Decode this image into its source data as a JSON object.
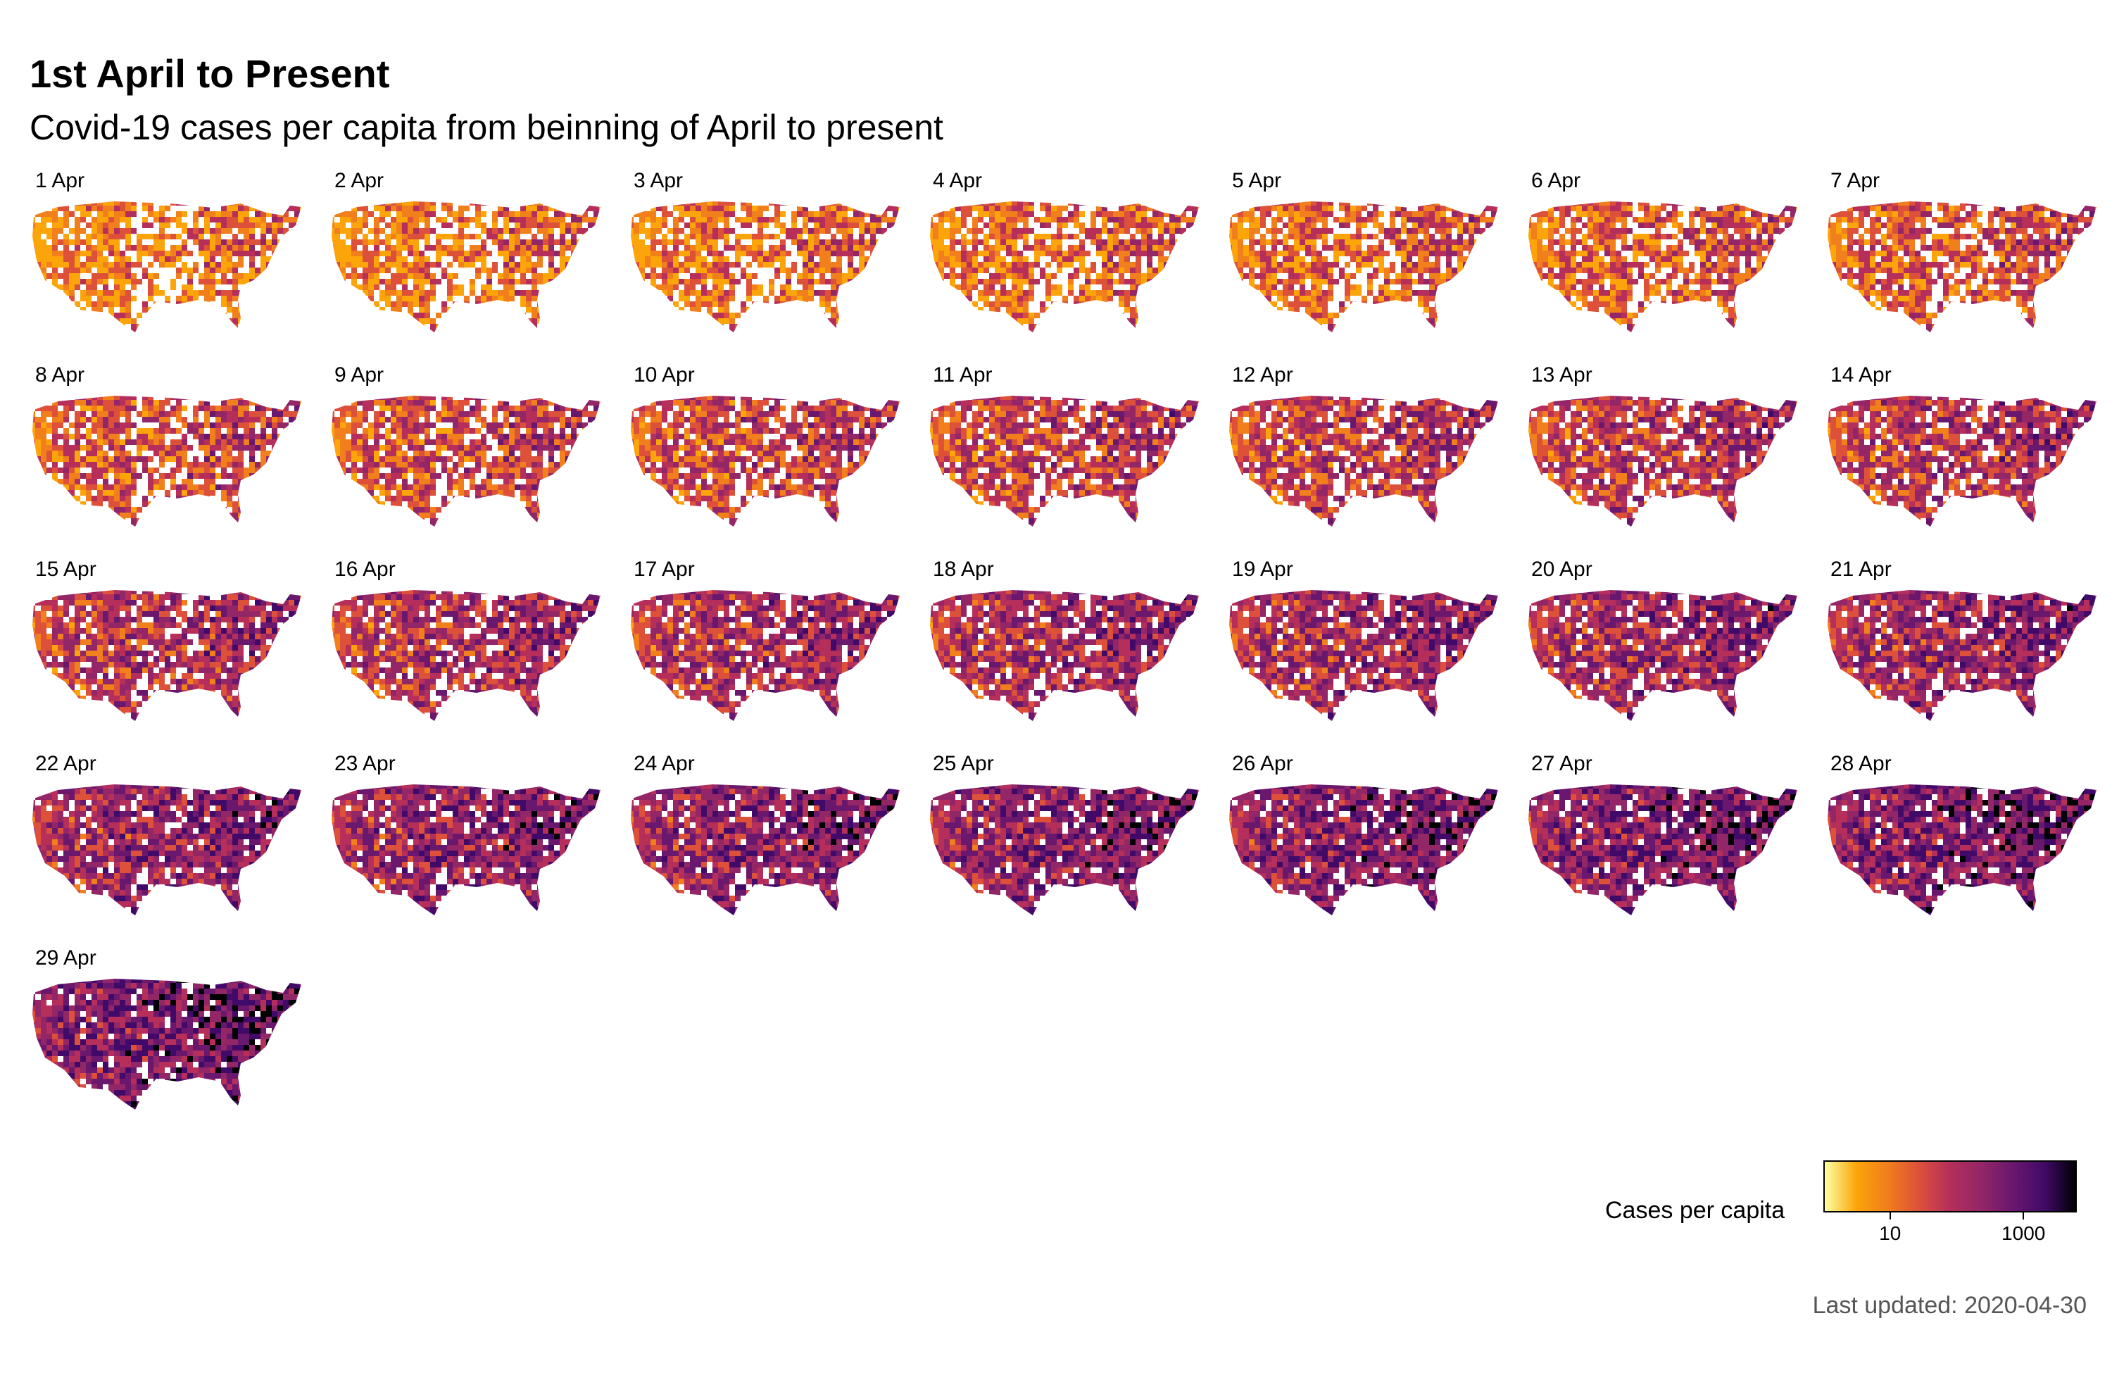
{
  "header": {
    "title": "1st April to Present",
    "subtitle": "Covid-19 cases per capita from beinning of April to present"
  },
  "panels": [
    {
      "label": "1 Apr",
      "level": 0.1
    },
    {
      "label": "2 Apr",
      "level": 0.13
    },
    {
      "label": "3 Apr",
      "level": 0.16
    },
    {
      "label": "4 Apr",
      "level": 0.19
    },
    {
      "label": "5 Apr",
      "level": 0.22
    },
    {
      "label": "6 Apr",
      "level": 0.25
    },
    {
      "label": "7 Apr",
      "level": 0.28
    },
    {
      "label": "8 Apr",
      "level": 0.31
    },
    {
      "label": "9 Apr",
      "level": 0.34
    },
    {
      "label": "10 Apr",
      "level": 0.37
    },
    {
      "label": "11 Apr",
      "level": 0.4
    },
    {
      "label": "12 Apr",
      "level": 0.42
    },
    {
      "label": "13 Apr",
      "level": 0.44
    },
    {
      "label": "14 Apr",
      "level": 0.46
    },
    {
      "label": "15 Apr",
      "level": 0.48
    },
    {
      "label": "16 Apr",
      "level": 0.5
    },
    {
      "label": "17 Apr",
      "level": 0.52
    },
    {
      "label": "18 Apr",
      "level": 0.54
    },
    {
      "label": "19 Apr",
      "level": 0.56
    },
    {
      "label": "20 Apr",
      "level": 0.58
    },
    {
      "label": "21 Apr",
      "level": 0.6
    },
    {
      "label": "22 Apr",
      "level": 0.62
    },
    {
      "label": "23 Apr",
      "level": 0.64
    },
    {
      "label": "24 Apr",
      "level": 0.66
    },
    {
      "label": "25 Apr",
      "level": 0.68
    },
    {
      "label": "26 Apr",
      "level": 0.7
    },
    {
      "label": "27 Apr",
      "level": 0.72
    },
    {
      "label": "28 Apr",
      "level": 0.74
    },
    {
      "label": "29 Apr",
      "level": 0.76
    }
  ],
  "legend": {
    "title": "Cases per capita",
    "scale": "log",
    "ticks": [
      {
        "label": "10",
        "value": 10
      },
      {
        "label": "1000",
        "value": 1000
      }
    ],
    "colors": [
      "#fcffa4",
      "#fca50a",
      "#f07f1c",
      "#dd513a",
      "#b52f5a",
      "#932667",
      "#6a176e",
      "#420a68",
      "#000004"
    ]
  },
  "caption": "Last updated: 2020-04-30"
}
